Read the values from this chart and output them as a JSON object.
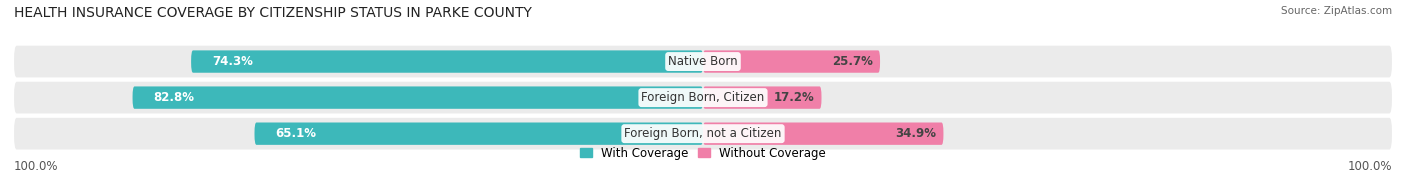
{
  "title": "HEALTH INSURANCE COVERAGE BY CITIZENSHIP STATUS IN PARKE COUNTY",
  "source": "Source: ZipAtlas.com",
  "categories": [
    "Native Born",
    "Foreign Born, Citizen",
    "Foreign Born, not a Citizen"
  ],
  "with_coverage": [
    74.3,
    82.8,
    65.1
  ],
  "without_coverage": [
    25.7,
    17.2,
    34.9
  ],
  "color_with": "#3db8ba",
  "color_without": "#f07fa8",
  "color_row_bg": "#ebebeb",
  "label_with": "With Coverage",
  "label_without": "Without Coverage",
  "x_left_label": "100.0%",
  "x_right_label": "100.0%",
  "title_fontsize": 10,
  "source_fontsize": 7.5,
  "bar_label_fontsize": 8.5,
  "cat_label_fontsize": 8.5,
  "legend_fontsize": 8.5,
  "figsize": [
    14.06,
    1.96
  ],
  "dpi": 100
}
